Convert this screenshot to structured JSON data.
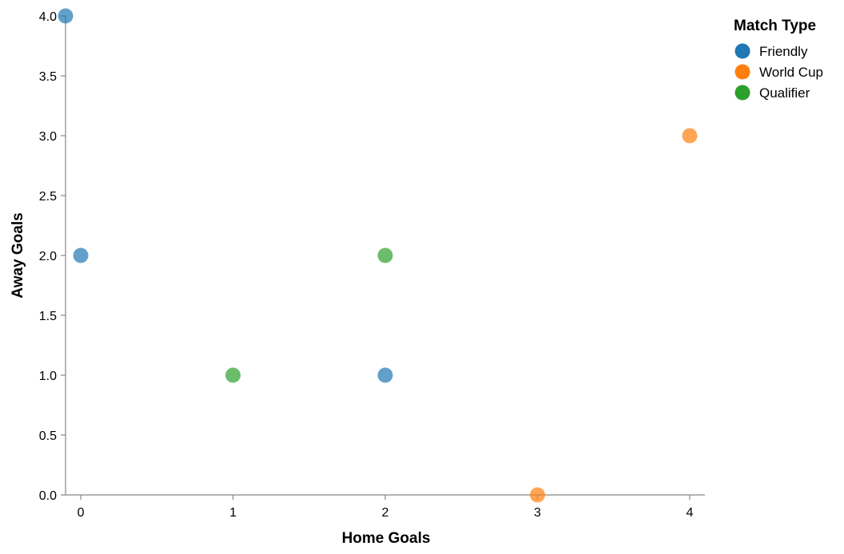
{
  "chart_data": {
    "type": "scatter",
    "xlabel": "Home Goals",
    "ylabel": "Away Goals",
    "xlim": [
      -0.1,
      4.1
    ],
    "ylim": [
      0,
      4
    ],
    "x_ticks": [
      "0",
      "1",
      "2",
      "3",
      "4"
    ],
    "y_ticks": [
      "0.0",
      "0.5",
      "1.0",
      "1.5",
      "2.0",
      "2.5",
      "3.0",
      "3.5",
      "4.0"
    ],
    "grid": false,
    "legend": {
      "title": "Match Type",
      "placement": "top-right"
    },
    "series": [
      {
        "name": "Friendly",
        "color": "#1f77b4",
        "points": [
          {
            "x": -0.1,
            "y": 4.0
          },
          {
            "x": 0,
            "y": 2.0
          },
          {
            "x": 2,
            "y": 1.0
          }
        ]
      },
      {
        "name": "World Cup",
        "color": "#ff7f0e",
        "points": [
          {
            "x": 4,
            "y": 3.0
          },
          {
            "x": 3,
            "y": 0.0
          }
        ]
      },
      {
        "name": "Qualifier",
        "color": "#2ca02c",
        "points": [
          {
            "x": 2,
            "y": 2.0
          },
          {
            "x": 1,
            "y": 1.0
          }
        ]
      }
    ]
  }
}
